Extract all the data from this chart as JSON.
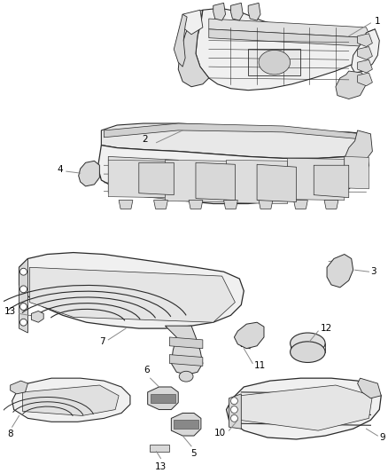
{
  "background_color": "#ffffff",
  "fig_width": 4.38,
  "fig_height": 5.33,
  "dpi": 100,
  "line_color": "#2a2a2a",
  "fill_color": "#f0f0f0",
  "fill_dark": "#d8d8d8",
  "font_size": 7.5,
  "text_color": "#000000",
  "label_leader_color": "#888888"
}
